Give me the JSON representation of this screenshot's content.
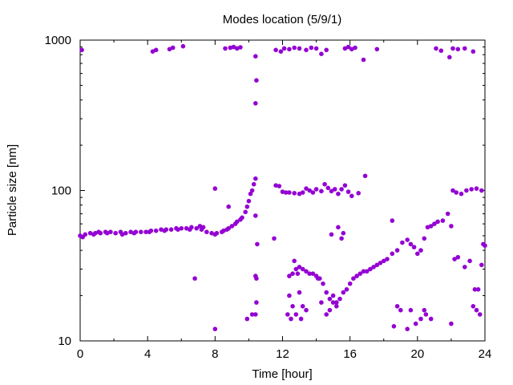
{
  "chart_data": {
    "type": "scatter",
    "title": "Modes location (5/9/1)",
    "xlabel": "Time [hour]",
    "ylabel": "Particle size [nm]",
    "xlim": [
      0,
      24
    ],
    "ylim": [
      10,
      1000
    ],
    "yscale": "log",
    "grid": false,
    "legend": "none",
    "marker_color": "#9400d3",
    "xticks": [
      0,
      4,
      8,
      12,
      16,
      20,
      24
    ],
    "xtick_labels": [
      "0",
      "4",
      "8",
      "12",
      "16",
      "20",
      "24"
    ],
    "yticks": [
      10,
      100,
      1000
    ],
    "ytick_labels": [
      "10",
      "100",
      "1000"
    ],
    "series": [
      {
        "points": [
          [
            0.1,
            860
          ],
          [
            4.3,
            840
          ],
          [
            4.5,
            860
          ],
          [
            5.3,
            870
          ],
          [
            5.5,
            890
          ],
          [
            6.1,
            910
          ],
          [
            8.6,
            880
          ],
          [
            8.9,
            890
          ],
          [
            9.1,
            900
          ],
          [
            9.3,
            880
          ],
          [
            9.5,
            895
          ],
          [
            10.4,
            780
          ],
          [
            10.45,
            540
          ],
          [
            10.4,
            380
          ],
          [
            11.6,
            860
          ],
          [
            11.9,
            840
          ],
          [
            12.1,
            880
          ],
          [
            12.4,
            870
          ],
          [
            12.7,
            890
          ],
          [
            13.0,
            880
          ],
          [
            13.4,
            860
          ],
          [
            13.7,
            890
          ],
          [
            14.0,
            880
          ],
          [
            14.3,
            810
          ],
          [
            14.6,
            860
          ],
          [
            15.7,
            880
          ],
          [
            15.9,
            900
          ],
          [
            16.1,
            870
          ],
          [
            16.3,
            890
          ],
          [
            16.8,
            740
          ],
          [
            17.6,
            870
          ],
          [
            21.1,
            880
          ],
          [
            21.4,
            850
          ],
          [
            21.9,
            770
          ],
          [
            22.1,
            880
          ],
          [
            22.4,
            870
          ],
          [
            22.8,
            880
          ],
          [
            23.3,
            840
          ],
          [
            0.0,
            50
          ],
          [
            0.3,
            51
          ],
          [
            0.6,
            52
          ],
          [
            0.9,
            52
          ],
          [
            1.2,
            52
          ],
          [
            1.5,
            53
          ],
          [
            1.8,
            53
          ],
          [
            2.1,
            52
          ],
          [
            2.4,
            53
          ],
          [
            2.7,
            52
          ],
          [
            3.0,
            53
          ],
          [
            3.3,
            53
          ],
          [
            3.6,
            53
          ],
          [
            3.9,
            53
          ],
          [
            4.2,
            54
          ],
          [
            4.5,
            54
          ],
          [
            4.8,
            55
          ],
          [
            5.1,
            55
          ],
          [
            5.4,
            55
          ],
          [
            5.7,
            56
          ],
          [
            6.0,
            56
          ],
          [
            6.3,
            56
          ],
          [
            6.6,
            57
          ],
          [
            6.9,
            56
          ],
          [
            7.2,
            55
          ],
          [
            7.5,
            53
          ],
          [
            7.8,
            52
          ],
          [
            8.1,
            52
          ],
          [
            8.4,
            53
          ],
          [
            8.7,
            55
          ],
          [
            9.0,
            58
          ],
          [
            9.3,
            62
          ],
          [
            9.6,
            66
          ],
          [
            9.9,
            78
          ],
          [
            10.1,
            95
          ],
          [
            10.3,
            110
          ],
          [
            10.4,
            120
          ],
          [
            0.15,
            49
          ],
          [
            0.8,
            51
          ],
          [
            1.1,
            53
          ],
          [
            1.6,
            52
          ],
          [
            2.5,
            51
          ],
          [
            3.2,
            52
          ],
          [
            4.1,
            53
          ],
          [
            5.0,
            54
          ],
          [
            5.8,
            55
          ],
          [
            6.5,
            55
          ],
          [
            7.1,
            58
          ],
          [
            7.3,
            57
          ],
          [
            8.0,
            51
          ],
          [
            8.5,
            54
          ],
          [
            8.8,
            56
          ],
          [
            9.2,
            60
          ],
          [
            9.5,
            64
          ],
          [
            9.8,
            72
          ],
          [
            10.0,
            85
          ],
          [
            10.2,
            100
          ],
          [
            6.8,
            26
          ],
          [
            8.0,
            103
          ],
          [
            8.8,
            78
          ],
          [
            10.4,
            68
          ],
          [
            10.5,
            44
          ],
          [
            10.4,
            27
          ],
          [
            10.45,
            26
          ],
          [
            10.45,
            18
          ],
          [
            10.4,
            15
          ],
          [
            10.2,
            15
          ],
          [
            9.9,
            14
          ],
          [
            8.0,
            12
          ],
          [
            11.5,
            48
          ],
          [
            11.6,
            108
          ],
          [
            11.8,
            107
          ],
          [
            12.0,
            98
          ],
          [
            12.2,
            97
          ],
          [
            12.4,
            97
          ],
          [
            12.7,
            96
          ],
          [
            13.0,
            95
          ],
          [
            13.2,
            97
          ],
          [
            13.4,
            103
          ],
          [
            13.6,
            100
          ],
          [
            13.8,
            97
          ],
          [
            14.0,
            102
          ],
          [
            14.3,
            99
          ],
          [
            14.5,
            110
          ],
          [
            14.7,
            104
          ],
          [
            14.9,
            99
          ],
          [
            15.1,
            102
          ],
          [
            15.3,
            95
          ],
          [
            15.5,
            102
          ],
          [
            15.7,
            108
          ],
          [
            15.9,
            98
          ],
          [
            16.1,
            92
          ],
          [
            16.9,
            125
          ],
          [
            16.5,
            96
          ],
          [
            12.4,
            27
          ],
          [
            12.6,
            28
          ],
          [
            12.8,
            30
          ],
          [
            13.0,
            31
          ],
          [
            13.2,
            30
          ],
          [
            13.4,
            29
          ],
          [
            13.6,
            28
          ],
          [
            13.8,
            28
          ],
          [
            14.0,
            27
          ],
          [
            14.2,
            26
          ],
          [
            14.4,
            24
          ],
          [
            14.6,
            21
          ],
          [
            14.8,
            19
          ],
          [
            15.0,
            18
          ],
          [
            15.2,
            18
          ],
          [
            15.4,
            19
          ],
          [
            15.6,
            21
          ],
          [
            15.8,
            22
          ],
          [
            16.0,
            24
          ],
          [
            16.2,
            26
          ],
          [
            16.4,
            27
          ],
          [
            16.6,
            28
          ],
          [
            16.8,
            29
          ],
          [
            17.0,
            29
          ],
          [
            17.2,
            30
          ],
          [
            17.4,
            31
          ],
          [
            17.6,
            32
          ],
          [
            17.8,
            33
          ],
          [
            18.0,
            34
          ],
          [
            18.2,
            35
          ],
          [
            18.5,
            38
          ],
          [
            18.8,
            40
          ],
          [
            19.1,
            45
          ],
          [
            19.4,
            47
          ],
          [
            19.6,
            44
          ],
          [
            19.8,
            42
          ],
          [
            20.0,
            38
          ],
          [
            20.2,
            40
          ],
          [
            20.4,
            48
          ],
          [
            20.6,
            57
          ],
          [
            20.8,
            58
          ],
          [
            21.0,
            60
          ],
          [
            21.2,
            62
          ],
          [
            21.5,
            63
          ],
          [
            21.8,
            70
          ],
          [
            22.1,
            100
          ],
          [
            22.3,
            97
          ],
          [
            22.6,
            95
          ],
          [
            22.9,
            100
          ],
          [
            23.2,
            102
          ],
          [
            23.5,
            103
          ],
          [
            23.8,
            100
          ],
          [
            12.7,
            34
          ],
          [
            12.9,
            28
          ],
          [
            12.4,
            20
          ],
          [
            12.6,
            17
          ],
          [
            12.8,
            15
          ],
          [
            12.5,
            14
          ],
          [
            12.3,
            15
          ],
          [
            13.0,
            21
          ],
          [
            13.2,
            17
          ],
          [
            13.4,
            16
          ],
          [
            13.1,
            14
          ],
          [
            14.1,
            26
          ],
          [
            14.3,
            18
          ],
          [
            14.6,
            15
          ],
          [
            14.8,
            16
          ],
          [
            15.0,
            20
          ],
          [
            15.2,
            17
          ],
          [
            14.9,
            51
          ],
          [
            15.3,
            57
          ],
          [
            15.5,
            48
          ],
          [
            15.6,
            52
          ],
          [
            18.5,
            63
          ],
          [
            18.6,
            12.5
          ],
          [
            18.8,
            17
          ],
          [
            19.0,
            16
          ],
          [
            19.4,
            12
          ],
          [
            19.6,
            16
          ],
          [
            19.9,
            13
          ],
          [
            20.2,
            14
          ],
          [
            20.4,
            16
          ],
          [
            20.5,
            15
          ],
          [
            20.8,
            14
          ],
          [
            22.0,
            13
          ],
          [
            22.2,
            35
          ],
          [
            22.4,
            36
          ],
          [
            22.8,
            31
          ],
          [
            23.1,
            34
          ],
          [
            23.3,
            17
          ],
          [
            23.5,
            16
          ],
          [
            23.7,
            15
          ],
          [
            23.4,
            22
          ],
          [
            23.6,
            22
          ],
          [
            23.8,
            32
          ],
          [
            23.9,
            44
          ],
          [
            24.0,
            43
          ],
          [
            22.0,
            58
          ]
        ]
      }
    ]
  }
}
